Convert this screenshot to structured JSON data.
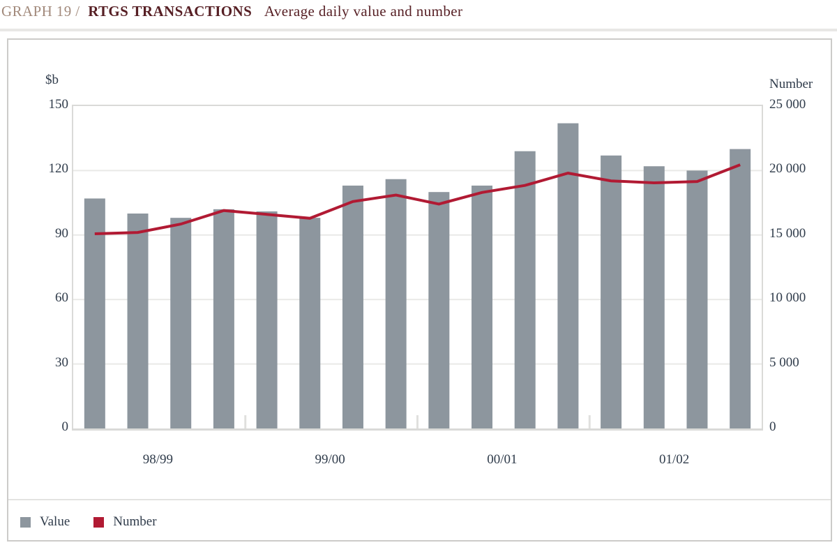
{
  "chart_data": {
    "type": "bar+line",
    "graph_label": "GRAPH 19 /",
    "title": "RTGS TRANSACTIONS",
    "subtitle": "Average daily value and number",
    "group_labels": [
      "98/99",
      "99/00",
      "00/01",
      "01/02"
    ],
    "bars_per_group": 4,
    "series": [
      {
        "name": "Value",
        "type": "bar",
        "axis": "left",
        "unit": "$b",
        "color": "#8d969e",
        "values": [
          107,
          100,
          98,
          102,
          101,
          98,
          113,
          116,
          110,
          113,
          129,
          142,
          127,
          122,
          120,
          130
        ]
      },
      {
        "name": "Number",
        "type": "line",
        "axis": "right",
        "color": "#b11a33",
        "values": [
          15100,
          15200,
          15850,
          16900,
          16600,
          16300,
          17600,
          18100,
          17400,
          18300,
          18850,
          19800,
          19200,
          19050,
          19150,
          20450
        ]
      }
    ],
    "left_axis": {
      "title": "$b",
      "min": 0,
      "max": 150,
      "ticks": [
        "150",
        "120",
        "90",
        "60",
        "30",
        "0"
      ]
    },
    "right_axis": {
      "title": "Number",
      "min": 0,
      "max": 25000,
      "ticks": [
        "25 000",
        "20 000",
        "15 000",
        "10 000",
        "5 000",
        "0"
      ]
    },
    "grid": true,
    "legend_position": "bottom-left"
  }
}
